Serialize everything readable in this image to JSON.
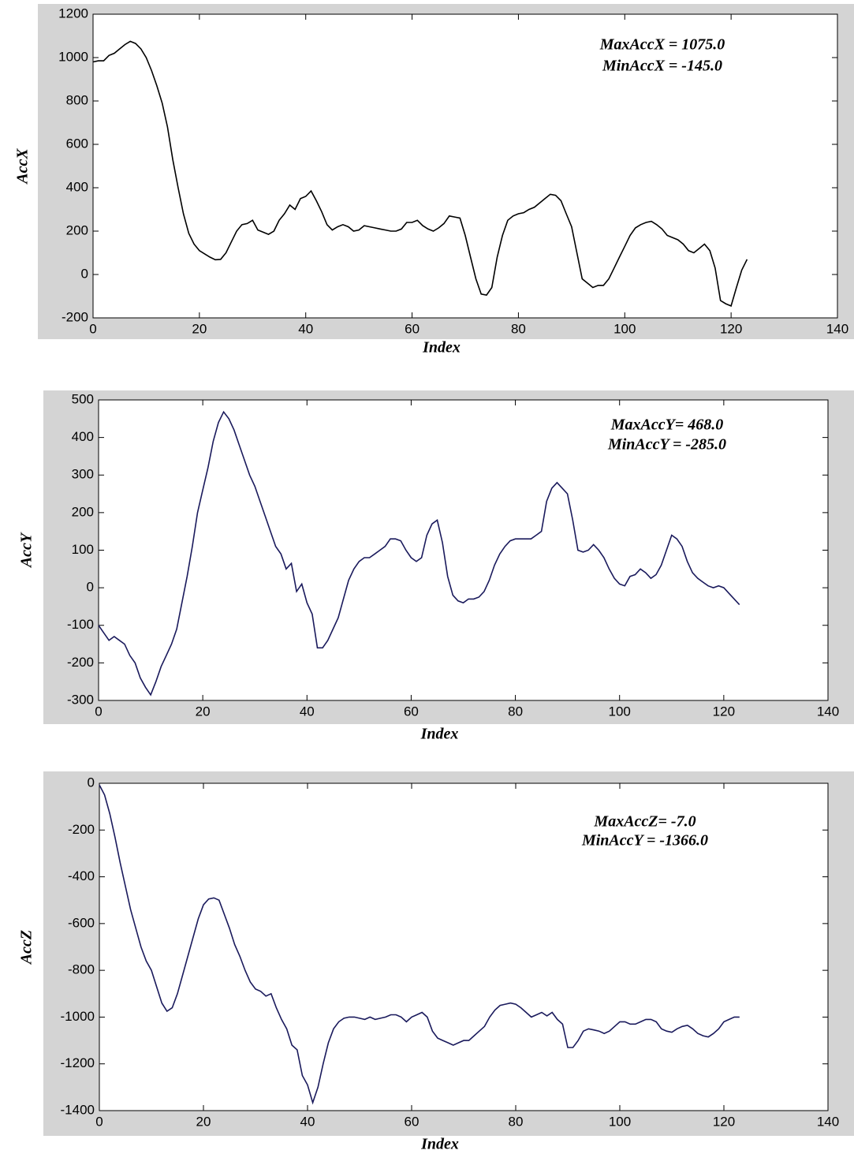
{
  "chart_data": [
    {
      "type": "line",
      "xlabel": "Index",
      "ylabel": "AccX",
      "color": "#000000",
      "annotations": [
        "MaxAccX = 1075.0",
        "MinAccX = -145.0"
      ],
      "xlim": [
        0,
        140
      ],
      "xticks": [
        0,
        20,
        40,
        60,
        80,
        100,
        120,
        140
      ],
      "ylim": [
        -200,
        1200
      ],
      "yticks": [
        -200,
        0,
        200,
        400,
        600,
        800,
        1000,
        1200
      ],
      "x": [
        0,
        1,
        2,
        3,
        4,
        5,
        6,
        7,
        8,
        9,
        10,
        11,
        12,
        13,
        14,
        15,
        16,
        17,
        18,
        19,
        20,
        21,
        22,
        23,
        24,
        25,
        26,
        27,
        28,
        29,
        30,
        31,
        32,
        33,
        34,
        35,
        36,
        37,
        38,
        39,
        40,
        41,
        42,
        43,
        44,
        45,
        46,
        47,
        48,
        49,
        50,
        51,
        52,
        53,
        54,
        55,
        56,
        57,
        58,
        59,
        60,
        61,
        62,
        63,
        64,
        65,
        66,
        67,
        68,
        69,
        70,
        71,
        72,
        73,
        74,
        75,
        76,
        77,
        78,
        79,
        80,
        81,
        82,
        83,
        84,
        85,
        86,
        87,
        88,
        89,
        90,
        91,
        92,
        93,
        94,
        95,
        96,
        97,
        98,
        99,
        100,
        101,
        102,
        103,
        104,
        105,
        106,
        107,
        108,
        109,
        110,
        111,
        112,
        113,
        114,
        115,
        116,
        117,
        118,
        119,
        120,
        121,
        122,
        123
      ],
      "values": [
        980,
        985,
        985,
        1010,
        1020,
        1040,
        1060,
        1075,
        1065,
        1040,
        1000,
        940,
        870,
        790,
        680,
        530,
        400,
        280,
        190,
        140,
        110,
        95,
        80,
        68,
        70,
        100,
        150,
        200,
        230,
        235,
        250,
        205,
        195,
        185,
        200,
        250,
        280,
        320,
        300,
        350,
        360,
        385,
        340,
        290,
        230,
        205,
        220,
        230,
        220,
        200,
        205,
        225,
        220,
        215,
        210,
        205,
        200,
        200,
        210,
        240,
        240,
        250,
        225,
        210,
        200,
        215,
        235,
        270,
        265,
        260,
        180,
        80,
        -20,
        -90,
        -95,
        -60,
        80,
        180,
        250,
        270,
        280,
        285,
        300,
        310,
        330,
        350,
        370,
        365,
        340,
        280,
        220,
        100,
        -20,
        -40,
        -60,
        -50,
        -50,
        -20,
        30,
        80,
        130,
        180,
        215,
        230,
        240,
        245,
        230,
        210,
        180,
        170,
        160,
        140,
        110,
        100,
        120,
        140,
        110,
        30,
        -120,
        -135,
        -145,
        -60,
        20,
        70
      ]
    },
    {
      "type": "line",
      "xlabel": "Index",
      "ylabel": "AccY",
      "color": "#1a1a5c",
      "annotations": [
        "MaxAccY= 468.0",
        "MinAccY = -285.0"
      ],
      "xlim": [
        0,
        140
      ],
      "xticks": [
        0,
        20,
        40,
        60,
        80,
        100,
        120,
        140
      ],
      "ylim": [
        -300,
        500
      ],
      "yticks": [
        -300,
        -200,
        -100,
        0,
        100,
        200,
        300,
        400,
        500
      ],
      "x": [
        0,
        1,
        2,
        3,
        4,
        5,
        6,
        7,
        8,
        9,
        10,
        11,
        12,
        13,
        14,
        15,
        16,
        17,
        18,
        19,
        20,
        21,
        22,
        23,
        24,
        25,
        26,
        27,
        28,
        29,
        30,
        31,
        32,
        33,
        34,
        35,
        36,
        37,
        38,
        39,
        40,
        41,
        42,
        43,
        44,
        45,
        46,
        47,
        48,
        49,
        50,
        51,
        52,
        53,
        54,
        55,
        56,
        57,
        58,
        59,
        60,
        61,
        62,
        63,
        64,
        65,
        66,
        67,
        68,
        69,
        70,
        71,
        72,
        73,
        74,
        75,
        76,
        77,
        78,
        79,
        80,
        81,
        82,
        83,
        84,
        85,
        86,
        87,
        88,
        89,
        90,
        91,
        92,
        93,
        94,
        95,
        96,
        97,
        98,
        99,
        100,
        101,
        102,
        103,
        104,
        105,
        106,
        107,
        108,
        109,
        110,
        111,
        112,
        113,
        114,
        115,
        116,
        117,
        118,
        119,
        120,
        121,
        122,
        123
      ],
      "values": [
        -100,
        -120,
        -140,
        -130,
        -140,
        -150,
        -180,
        -200,
        -240,
        -265,
        -285,
        -250,
        -210,
        -180,
        -150,
        -110,
        -40,
        30,
        110,
        200,
        260,
        320,
        390,
        440,
        468,
        450,
        420,
        380,
        340,
        300,
        270,
        230,
        190,
        150,
        110,
        90,
        50,
        65,
        -10,
        10,
        -40,
        -70,
        -160,
        -160,
        -140,
        -110,
        -80,
        -30,
        20,
        50,
        70,
        80,
        80,
        90,
        100,
        110,
        130,
        130,
        125,
        100,
        80,
        70,
        80,
        140,
        170,
        180,
        120,
        30,
        -20,
        -35,
        -40,
        -30,
        -30,
        -25,
        -10,
        20,
        60,
        90,
        110,
        125,
        130,
        130,
        130,
        130,
        140,
        150,
        230,
        265,
        280,
        265,
        250,
        180,
        100,
        95,
        100,
        115,
        100,
        80,
        50,
        25,
        10,
        5,
        30,
        35,
        50,
        40,
        25,
        35,
        60,
        100,
        140,
        130,
        110,
        70,
        40,
        25,
        15,
        5,
        0,
        5,
        0,
        -15,
        -30,
        -45
      ]
    },
    {
      "type": "line",
      "xlabel": "Index",
      "ylabel": "AccZ",
      "color": "#1a1a5c",
      "annotations": [
        "MaxAccZ= -7.0",
        "MinAccY = -1366.0"
      ],
      "xlim": [
        0,
        140
      ],
      "xticks": [
        0,
        20,
        40,
        60,
        80,
        100,
        120,
        140
      ],
      "ylim": [
        -1400,
        0
      ],
      "yticks": [
        -1400,
        -1200,
        -1000,
        -800,
        -600,
        -400,
        -200,
        0
      ],
      "x": [
        0,
        1,
        2,
        3,
        4,
        5,
        6,
        7,
        8,
        9,
        10,
        11,
        12,
        13,
        14,
        15,
        16,
        17,
        18,
        19,
        20,
        21,
        22,
        23,
        24,
        25,
        26,
        27,
        28,
        29,
        30,
        31,
        32,
        33,
        34,
        35,
        36,
        37,
        38,
        39,
        40,
        41,
        42,
        43,
        44,
        45,
        46,
        47,
        48,
        49,
        50,
        51,
        52,
        53,
        54,
        55,
        56,
        57,
        58,
        59,
        60,
        61,
        62,
        63,
        64,
        65,
        66,
        67,
        68,
        69,
        70,
        71,
        72,
        73,
        74,
        75,
        76,
        77,
        78,
        79,
        80,
        81,
        82,
        83,
        84,
        85,
        86,
        87,
        88,
        89,
        90,
        91,
        92,
        93,
        94,
        95,
        96,
        97,
        98,
        99,
        100,
        101,
        102,
        103,
        104,
        105,
        106,
        107,
        108,
        109,
        110,
        111,
        112,
        113,
        114,
        115,
        116,
        117,
        118,
        119,
        120,
        121,
        122,
        123
      ],
      "values": [
        -7,
        -50,
        -130,
        -230,
        -340,
        -440,
        -540,
        -620,
        -700,
        -760,
        -800,
        -870,
        -940,
        -975,
        -960,
        -900,
        -820,
        -740,
        -660,
        -580,
        -520,
        -495,
        -490,
        -500,
        -560,
        -620,
        -690,
        -740,
        -800,
        -850,
        -880,
        -890,
        -910,
        -900,
        -960,
        -1010,
        -1050,
        -1120,
        -1140,
        -1250,
        -1290,
        -1366,
        -1300,
        -1200,
        -1110,
        -1050,
        -1020,
        -1005,
        -1000,
        -1000,
        -1005,
        -1010,
        -1000,
        -1010,
        -1005,
        -1000,
        -990,
        -990,
        -1000,
        -1020,
        -1000,
        -990,
        -980,
        -1000,
        -1060,
        -1090,
        -1100,
        -1110,
        -1120,
        -1110,
        -1100,
        -1100,
        -1080,
        -1060,
        -1040,
        -1000,
        -970,
        -950,
        -945,
        -940,
        -945,
        -960,
        -980,
        -1000,
        -990,
        -980,
        -995,
        -980,
        -1010,
        -1030,
        -1130,
        -1130,
        -1100,
        -1060,
        -1050,
        -1055,
        -1060,
        -1070,
        -1060,
        -1040,
        -1020,
        -1020,
        -1030,
        -1030,
        -1020,
        -1010,
        -1010,
        -1020,
        -1050,
        -1060,
        -1065,
        -1050,
        -1040,
        -1035,
        -1050,
        -1070,
        -1080,
        -1085,
        -1070,
        -1050,
        -1020,
        -1010,
        -1000,
        -1000
      ]
    }
  ]
}
